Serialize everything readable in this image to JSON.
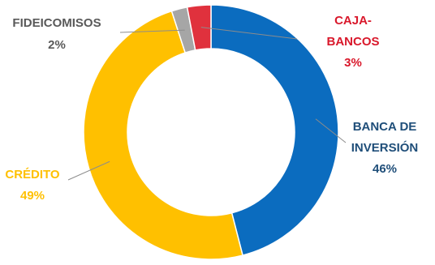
{
  "chart_data": {
    "type": "pie",
    "variant": "donut",
    "slices": [
      {
        "label_lines": [
          "BANCA DE",
          "INVERSIÓN"
        ],
        "value_text": "46%",
        "value": 46,
        "color": "#0b6cbf",
        "label_color": "#1f4e79"
      },
      {
        "label_lines": [
          "CRÉDITO"
        ],
        "value_text": "49%",
        "value": 49,
        "color": "#ffc000",
        "label_color": "#ffc000"
      },
      {
        "label_lines": [
          "FIDEICOMISOS"
        ],
        "value_text": "2%",
        "value": 2,
        "color": "#a6a6a6",
        "label_color": "#595959"
      },
      {
        "label_lines": [
          "CAJA-",
          "BANCOS"
        ],
        "value_text": "3%",
        "value": 3,
        "color": "#e0313d",
        "label_color": "#d9182b"
      }
    ]
  }
}
